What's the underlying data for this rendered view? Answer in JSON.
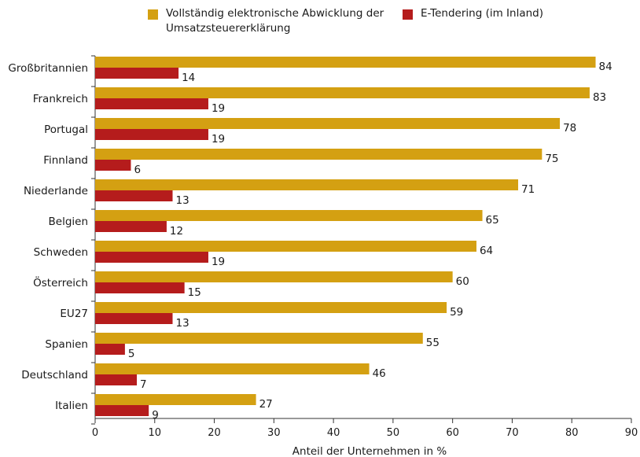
{
  "chart_data": {
    "type": "bar",
    "orientation": "horizontal",
    "categories": [
      "Großbritannien",
      "Frankreich",
      "Portugal",
      "Finnland",
      "Niederlande",
      "Belgien",
      "Schweden",
      "Österreich",
      "EU27",
      "Spanien",
      "Deutschland",
      "Italien"
    ],
    "series": [
      {
        "name": "Vollständig elektronische Abwicklung der Umsatzsteuererklärung",
        "color": "#d4a012",
        "values": [
          84,
          83,
          78,
          75,
          71,
          65,
          64,
          60,
          59,
          55,
          46,
          27
        ]
      },
      {
        "name": "E-Tendering (im Inland)",
        "color": "#b51c1c",
        "values": [
          14,
          19,
          19,
          6,
          13,
          12,
          19,
          15,
          13,
          5,
          7,
          9
        ]
      }
    ],
    "xlabel": "Anteil der Unternehmen in %",
    "ylabel": "",
    "xlim": [
      0,
      90
    ],
    "xticks": [
      0,
      10,
      20,
      30,
      40,
      50,
      60,
      70,
      80,
      90
    ],
    "data_labels": true,
    "grid": false,
    "legend_position": "top"
  }
}
